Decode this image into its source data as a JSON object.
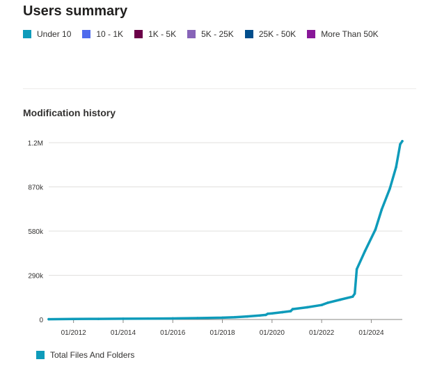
{
  "header": {
    "title": "Users summary"
  },
  "users_legend": [
    {
      "label": "Under 10",
      "color": "#0e9bba"
    },
    {
      "label": "10 - 1K",
      "color": "#4f6bed"
    },
    {
      "label": "1K - 5K",
      "color": "#6b0048"
    },
    {
      "label": "5K - 25K",
      "color": "#8764b8"
    },
    {
      "label": "25K - 50K",
      "color": "#004e8c"
    },
    {
      "label": "More Than 50K",
      "color": "#881798"
    }
  ],
  "chart_data": {
    "type": "line",
    "title": "Modification history",
    "xlabel": "",
    "ylabel": "",
    "y_ticks": [
      "0",
      "290k",
      "580k",
      "870k",
      "1.2M"
    ],
    "y_tick_values": [
      0,
      290000,
      580000,
      870000,
      1160000
    ],
    "x_ticks": [
      "01/2012",
      "01/2014",
      "01/2016",
      "01/2018",
      "01/2020",
      "01/2022",
      "01/2024"
    ],
    "x_tick_values": [
      "2012-01",
      "2014-01",
      "2016-01",
      "2018-01",
      "2020-01",
      "2022-01",
      "2024-01"
    ],
    "xlim": [
      "2011-01",
      "2025-04"
    ],
    "ylim": [
      0,
      1160000
    ],
    "grid": true,
    "legend": "bottom-left",
    "series": [
      {
        "name": "Total Files And Folders",
        "color": "#0e9bba",
        "points": [
          [
            "2011-01",
            2000
          ],
          [
            "2012-01",
            3000
          ],
          [
            "2013-01",
            4000
          ],
          [
            "2014-01",
            5000
          ],
          [
            "2015-01",
            6000
          ],
          [
            "2016-01",
            7000
          ],
          [
            "2017-01",
            9000
          ],
          [
            "2018-01",
            12000
          ],
          [
            "2018-07",
            15000
          ],
          [
            "2019-01",
            20000
          ],
          [
            "2019-07",
            26000
          ],
          [
            "2019-10",
            30000
          ],
          [
            "2019-11",
            38000
          ],
          [
            "2020-01",
            40000
          ],
          [
            "2020-06",
            48000
          ],
          [
            "2020-10",
            55000
          ],
          [
            "2020-11",
            68000
          ],
          [
            "2021-06",
            80000
          ],
          [
            "2022-01",
            95000
          ],
          [
            "2022-04",
            110000
          ],
          [
            "2022-10",
            130000
          ],
          [
            "2023-04",
            150000
          ],
          [
            "2023-05",
            170000
          ],
          [
            "2023-06",
            330000
          ],
          [
            "2023-10",
            450000
          ],
          [
            "2024-03",
            590000
          ],
          [
            "2024-06",
            720000
          ],
          [
            "2024-10",
            860000
          ],
          [
            "2025-01",
            1000000
          ],
          [
            "2025-03",
            1150000
          ],
          [
            "2025-04",
            1170000
          ]
        ]
      }
    ]
  }
}
